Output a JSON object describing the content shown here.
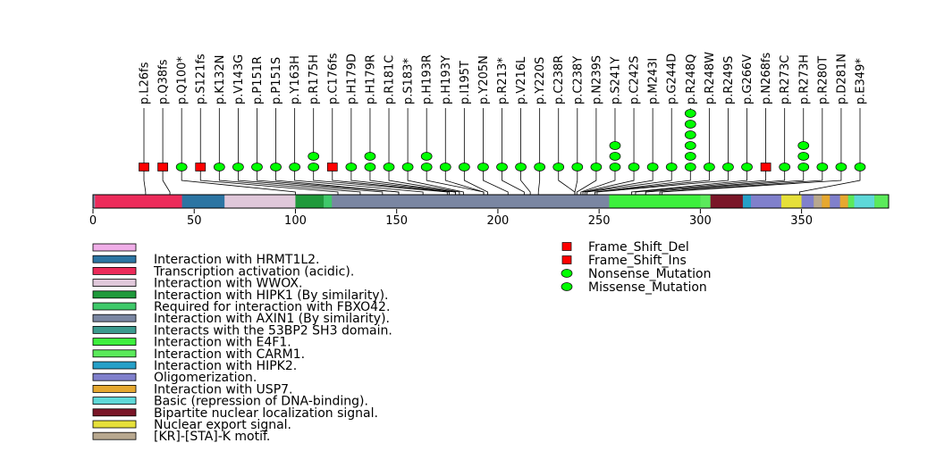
{
  "chart_data": {
    "type": "lollipop",
    "axis": {
      "min": 0,
      "max": 393,
      "ticks": [
        0,
        50,
        100,
        150,
        200,
        250,
        300,
        350
      ]
    },
    "colors": {
      "line": "#000000",
      "frame_shift": "#ff0000",
      "missense": "#00ff00",
      "backbone": "#7a86a2"
    },
    "domains": [
      {
        "start": 1,
        "end": 25,
        "color": "#f0aee8"
      },
      {
        "start": 1,
        "end": 44,
        "color": "#ec2b5a"
      },
      {
        "start": 44,
        "end": 65,
        "color": "#2c75a3"
      },
      {
        "start": 65,
        "end": 100,
        "color": "#e0c8da"
      },
      {
        "start": 100,
        "end": 114,
        "color": "#1f9a3b"
      },
      {
        "start": 114,
        "end": 118,
        "color": "#3fc96a"
      },
      {
        "start": 300,
        "end": 305,
        "color": "#5bea5b"
      },
      {
        "start": 255,
        "end": 300,
        "color": "#3df03d"
      },
      {
        "start": 305,
        "end": 321,
        "color": "#7a1628"
      },
      {
        "start": 321,
        "end": 325,
        "color": "#26a0c8"
      },
      {
        "start": 325,
        "end": 340,
        "color": "#8080cc"
      },
      {
        "start": 340,
        "end": 350,
        "color": "#e6e03a"
      },
      {
        "start": 350,
        "end": 356,
        "color": "#8080cc"
      },
      {
        "start": 356,
        "end": 360,
        "color": "#b8a88f"
      },
      {
        "start": 360,
        "end": 364,
        "color": "#e6a830"
      },
      {
        "start": 364,
        "end": 369,
        "color": "#8080cc"
      },
      {
        "start": 369,
        "end": 373,
        "color": "#e6a830"
      },
      {
        "start": 373,
        "end": 376,
        "color": "#5bea5b"
      },
      {
        "start": 376,
        "end": 386,
        "color": "#5ed8d8"
      },
      {
        "start": 386,
        "end": 393,
        "color": "#5bea5b"
      }
    ],
    "mutations": [
      {
        "label": "p.L26fs",
        "position": 26,
        "type": "Frame_Shift_Del",
        "count": 1
      },
      {
        "label": "p.Q38fs",
        "position": 38,
        "type": "Frame_Shift_Del",
        "count": 1
      },
      {
        "label": "p.Q100*",
        "position": 100,
        "type": "Nonsense_Mutation",
        "count": 1
      },
      {
        "label": "p.S121fs",
        "position": 121,
        "type": "Frame_Shift_Del",
        "count": 1
      },
      {
        "label": "p.K132N",
        "position": 132,
        "type": "Missense_Mutation",
        "count": 1
      },
      {
        "label": "p.V143G",
        "position": 143,
        "type": "Missense_Mutation",
        "count": 1
      },
      {
        "label": "p.P151R",
        "position": 151,
        "type": "Missense_Mutation",
        "count": 1
      },
      {
        "label": "p.P151S",
        "position": 151,
        "type": "Missense_Mutation",
        "count": 1
      },
      {
        "label": "p.Y163H",
        "position": 163,
        "type": "Missense_Mutation",
        "count": 1
      },
      {
        "label": "p.R175H",
        "position": 175,
        "type": "Missense_Mutation",
        "count": 2
      },
      {
        "label": "p.C176fs",
        "position": 176,
        "type": "Frame_Shift_Del",
        "count": 1
      },
      {
        "label": "p.H179D",
        "position": 179,
        "type": "Missense_Mutation",
        "count": 1
      },
      {
        "label": "p.H179R",
        "position": 179,
        "type": "Missense_Mutation",
        "count": 2
      },
      {
        "label": "p.R181C",
        "position": 181,
        "type": "Missense_Mutation",
        "count": 1
      },
      {
        "label": "p.S183*",
        "position": 183,
        "type": "Nonsense_Mutation",
        "count": 1
      },
      {
        "label": "p.H193R",
        "position": 193,
        "type": "Missense_Mutation",
        "count": 2
      },
      {
        "label": "p.H193Y",
        "position": 193,
        "type": "Missense_Mutation",
        "count": 1
      },
      {
        "label": "p.I195T",
        "position": 195,
        "type": "Missense_Mutation",
        "count": 1
      },
      {
        "label": "p.Y205N",
        "position": 205,
        "type": "Missense_Mutation",
        "count": 1
      },
      {
        "label": "p.R213*",
        "position": 213,
        "type": "Nonsense_Mutation",
        "count": 1
      },
      {
        "label": "p.V216L",
        "position": 216,
        "type": "Missense_Mutation",
        "count": 1
      },
      {
        "label": "p.Y220S",
        "position": 220,
        "type": "Missense_Mutation",
        "count": 1
      },
      {
        "label": "p.C238R",
        "position": 238,
        "type": "Missense_Mutation",
        "count": 1
      },
      {
        "label": "p.C238Y",
        "position": 238,
        "type": "Missense_Mutation",
        "count": 1
      },
      {
        "label": "p.N239S",
        "position": 239,
        "type": "Missense_Mutation",
        "count": 1
      },
      {
        "label": "p.S241Y",
        "position": 241,
        "type": "Missense_Mutation",
        "count": 3
      },
      {
        "label": "p.C242S",
        "position": 242,
        "type": "Missense_Mutation",
        "count": 1
      },
      {
        "label": "p.M243I",
        "position": 243,
        "type": "Missense_Mutation",
        "count": 1
      },
      {
        "label": "p.G244D",
        "position": 244,
        "type": "Missense_Mutation",
        "count": 1
      },
      {
        "label": "p.R248Q",
        "position": 248,
        "type": "Missense_Mutation",
        "count": 6
      },
      {
        "label": "p.R248W",
        "position": 248,
        "type": "Missense_Mutation",
        "count": 1
      },
      {
        "label": "p.R249S",
        "position": 249,
        "type": "Missense_Mutation",
        "count": 1
      },
      {
        "label": "p.G266V",
        "position": 266,
        "type": "Missense_Mutation",
        "count": 1
      },
      {
        "label": "p.N268fs",
        "position": 268,
        "type": "Frame_Shift_Del",
        "count": 1
      },
      {
        "label": "p.R273C",
        "position": 273,
        "type": "Missense_Mutation",
        "count": 1
      },
      {
        "label": "p.R273H",
        "position": 273,
        "type": "Missense_Mutation",
        "count": 3
      },
      {
        "label": "p.R280T",
        "position": 280,
        "type": "Missense_Mutation",
        "count": 1
      },
      {
        "label": "p.D281N",
        "position": 281,
        "type": "Missense_Mutation",
        "count": 1
      },
      {
        "label": "p.E349*",
        "position": 349,
        "type": "Nonsense_Mutation",
        "count": 1
      }
    ],
    "domain_legend": [
      {
        "label": "",
        "color": "#f0aee8"
      },
      {
        "label": "Interaction with HRMT1L2.",
        "color": "#2c75a3"
      },
      {
        "label": "Transcription activation (acidic).",
        "color": "#ec2b5a"
      },
      {
        "label": "Interaction with WWOX.",
        "color": "#e0c8da"
      },
      {
        "label": "Interaction with HIPK1 (By similarity).",
        "color": "#1f9a3b"
      },
      {
        "label": "Required for interaction with FBXO42.",
        "color": "#3fc96a"
      },
      {
        "label": "Interaction with AXIN1 (By similarity).",
        "color": "#7a86a2"
      },
      {
        "label": "Interacts with the 53BP2 SH3 domain.",
        "color": "#3c9b8f"
      },
      {
        "label": "Interaction with E4F1.",
        "color": "#3df03d"
      },
      {
        "label": "Interaction with CARM1.",
        "color": "#5bea5b"
      },
      {
        "label": "Interaction with HIPK2.",
        "color": "#26a0c8"
      },
      {
        "label": "Oligomerization.",
        "color": "#8080cc"
      },
      {
        "label": "Interaction with USP7.",
        "color": "#e6a830"
      },
      {
        "label": "Basic (repression of DNA-binding).",
        "color": "#5ed8d8"
      },
      {
        "label": "Bipartite nuclear localization signal.",
        "color": "#7a1628"
      },
      {
        "label": "Nuclear export signal.",
        "color": "#e6e03a"
      },
      {
        "label": "[KR]-[STA]-K motif.",
        "color": "#b8a88f"
      }
    ],
    "mutation_legend": [
      {
        "label": "Frame_Shift_Del",
        "shape": "square",
        "color": "#ff0000"
      },
      {
        "label": "Frame_Shift_Ins",
        "shape": "square",
        "color": "#ff0000"
      },
      {
        "label": "Nonsense_Mutation",
        "shape": "circle",
        "color": "#00ff00"
      },
      {
        "label": "Missense_Mutation",
        "shape": "circle",
        "color": "#00ff00"
      }
    ]
  }
}
